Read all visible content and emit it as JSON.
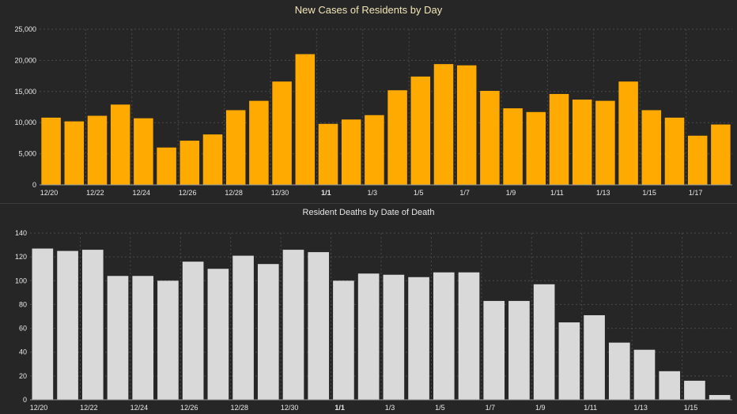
{
  "chart_data": [
    {
      "type": "bar",
      "title": "New Cases of Residents by Day",
      "color": "#FFAA00",
      "ylim": [
        0,
        25000
      ],
      "yticks": [
        "0",
        "5,000",
        "10,000",
        "15,000",
        "20,000",
        "25,000"
      ],
      "ytick_values": [
        0,
        5000,
        10000,
        15000,
        20000,
        25000
      ],
      "grid": true,
      "categories": [
        "12/20",
        "12/21",
        "12/22",
        "12/23",
        "12/24",
        "12/25",
        "12/26",
        "12/27",
        "12/28",
        "12/29",
        "12/30",
        "12/31",
        "1/1",
        "1/2",
        "1/3",
        "1/4",
        "1/5",
        "1/6",
        "1/7",
        "1/8",
        "1/9",
        "1/10",
        "1/11",
        "1/12",
        "1/13",
        "1/14",
        "1/15",
        "1/16",
        "1/17",
        "1/18"
      ],
      "values": [
        10800,
        10200,
        11100,
        12900,
        10700,
        6000,
        7100,
        8100,
        12000,
        13500,
        16600,
        21000,
        9800,
        10500,
        11200,
        15200,
        17400,
        19400,
        19200,
        15100,
        12300,
        11700,
        14600,
        13700,
        13500,
        16600,
        12000,
        10800,
        7900,
        9700
      ],
      "xticks": [
        "12/20",
        "12/22",
        "12/24",
        "12/26",
        "12/28",
        "12/30",
        "1/1",
        "1/3",
        "1/5",
        "1/7",
        "1/9",
        "1/11",
        "1/13",
        "1/15",
        "1/17"
      ],
      "bold_xtick": "1/1"
    },
    {
      "type": "bar",
      "title": "Resident Deaths by Date of Death",
      "color": "#D9D9D9",
      "ylim": [
        0,
        140
      ],
      "yticks": [
        "0",
        "20",
        "40",
        "60",
        "80",
        "100",
        "120",
        "140"
      ],
      "ytick_values": [
        0,
        20,
        40,
        60,
        80,
        100,
        120,
        140
      ],
      "grid": true,
      "categories": [
        "12/20",
        "12/21",
        "12/22",
        "12/23",
        "12/24",
        "12/25",
        "12/26",
        "12/27",
        "12/28",
        "12/29",
        "12/30",
        "12/31",
        "1/1",
        "1/2",
        "1/3",
        "1/4",
        "1/5",
        "1/6",
        "1/7",
        "1/8",
        "1/9",
        "1/10",
        "1/11",
        "1/12",
        "1/13",
        "1/14",
        "1/15",
        "1/16"
      ],
      "values": [
        127,
        125,
        126,
        104,
        104,
        100,
        116,
        110,
        121,
        114,
        126,
        124,
        100,
        106,
        105,
        103,
        107,
        107,
        83,
        83,
        97,
        65,
        71,
        48,
        42,
        24,
        16,
        4
      ],
      "xticks": [
        "12/20",
        "12/22",
        "12/24",
        "12/26",
        "12/28",
        "12/30",
        "1/1",
        "1/3",
        "1/5",
        "1/7",
        "1/9",
        "1/11",
        "1/13",
        "1/15"
      ],
      "bold_xtick": "1/1"
    }
  ]
}
